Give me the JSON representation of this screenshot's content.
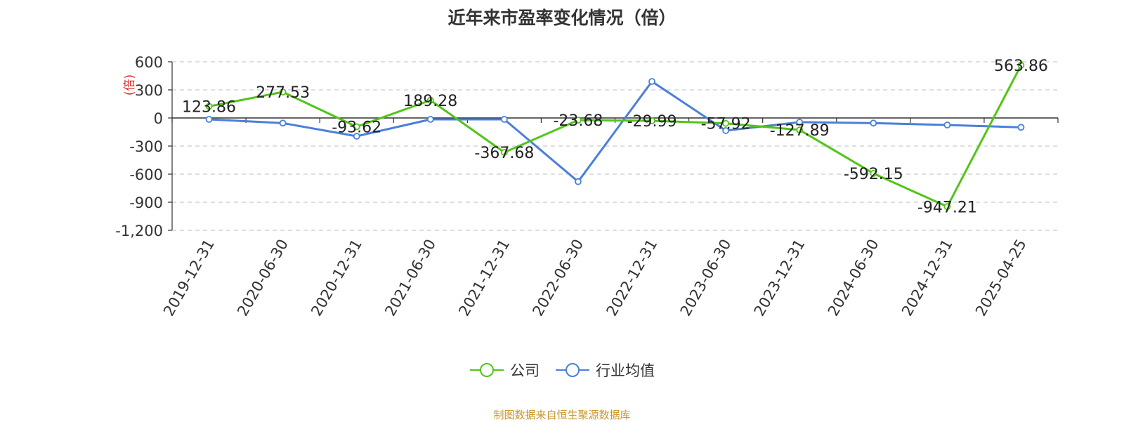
{
  "chart_data": {
    "type": "line",
    "title": "近年来市盈率变化情况（倍）",
    "ylabel": "(倍)",
    "xlabel": "",
    "categories": [
      "2019-12-31",
      "2020-06-30",
      "2020-12-31",
      "2021-06-30",
      "2021-12-31",
      "2022-06-30",
      "2022-12-31",
      "2023-06-30",
      "2023-12-31",
      "2024-06-30",
      "2024-12-31",
      "2025-04-25"
    ],
    "ylim": [
      -1200,
      600
    ],
    "yticks": [
      600,
      300,
      0,
      -300,
      -600,
      -900,
      -1200
    ],
    "ytick_labels": [
      "600",
      "300",
      "0",
      "-300",
      "-600",
      "-900",
      "-1,200"
    ],
    "grid": true,
    "legend_position": "bottom",
    "series": [
      {
        "name": "公司",
        "color": "#52c41a",
        "show_labels": true,
        "labels": [
          "123.86",
          "277.53",
          "-93.62",
          "189.28",
          "-367.68",
          "-23.68",
          "-29.99",
          "-57.92",
          "-127.89",
          "-592.15",
          "-947.21",
          "563.86"
        ],
        "values": [
          123.86,
          277.53,
          -93.62,
          189.28,
          -367.68,
          -23.68,
          -29.99,
          -57.92,
          -127.89,
          -592.15,
          -947.21,
          563.86
        ]
      },
      {
        "name": "行业均值",
        "color": "#4a7fdb",
        "show_labels": false,
        "values": [
          -15,
          -55,
          -195,
          -15,
          -15,
          -680,
          390,
          -135,
          -45,
          -55,
          -75,
          -100
        ]
      }
    ]
  },
  "footer": {
    "source": "制图数据来自恒生聚源数据库"
  }
}
